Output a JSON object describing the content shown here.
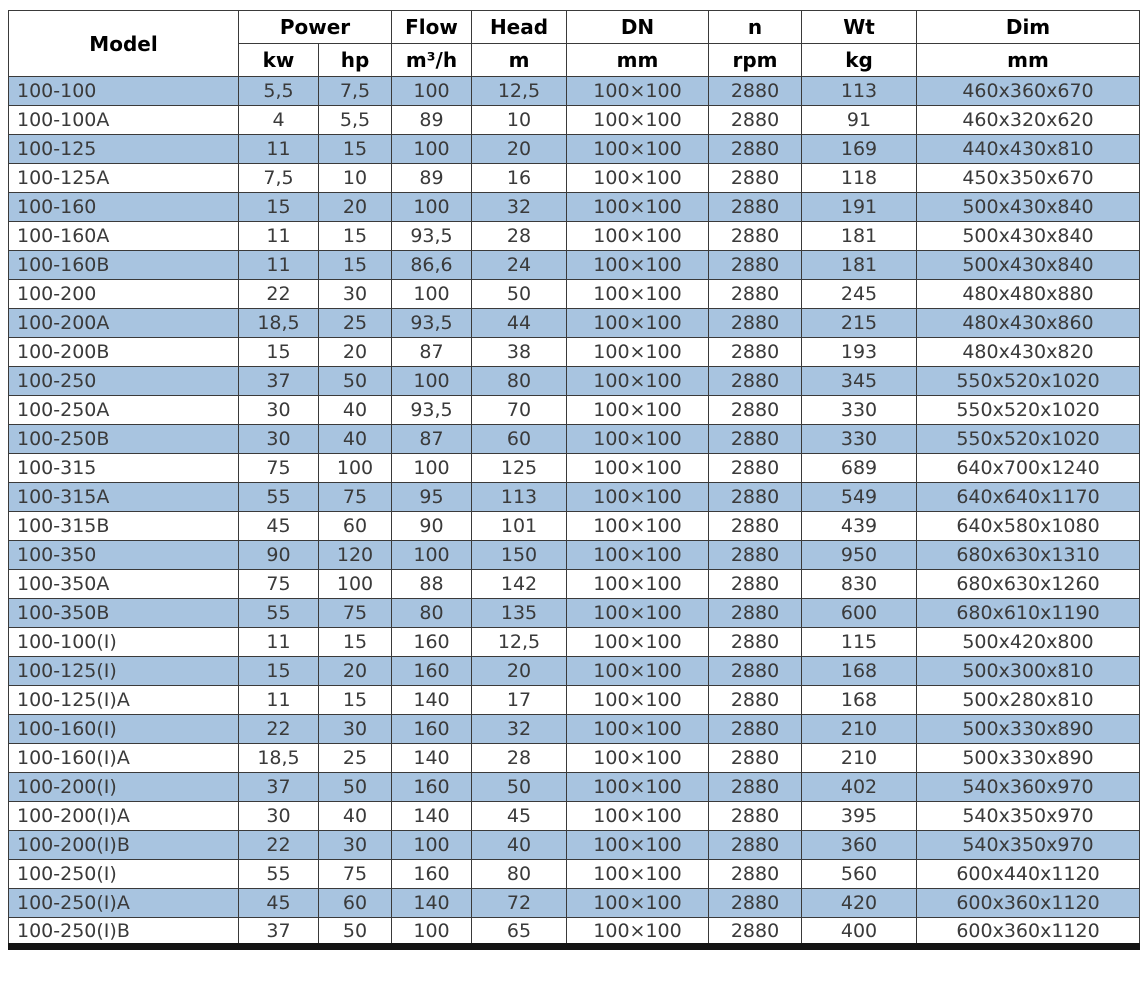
{
  "table": {
    "columns": [
      "model",
      "kw",
      "hp",
      "flow",
      "head",
      "dn",
      "n",
      "wt",
      "dim"
    ],
    "header": {
      "model": "Model",
      "power": "Power",
      "flow": "Flow",
      "head": "Head",
      "dn": "DN",
      "n": "n",
      "wt": "Wt",
      "dim": "Dim",
      "units": {
        "kw": "kw",
        "hp": "hp",
        "flow": "m³/h",
        "head": "m",
        "dn": "mm",
        "n": "rpm",
        "wt": "kg",
        "dim": "mm"
      }
    },
    "colors": {
      "stripe": "#a8c4e0",
      "border": "#3a3a3a",
      "header_text": "#000000",
      "body_text": "#3a3a3a"
    },
    "rows": [
      [
        "100-100",
        "5,5",
        "7,5",
        "100",
        "12,5",
        "100×100",
        "2880",
        "113",
        "460x360x670"
      ],
      [
        "100-100A",
        "4",
        "5,5",
        "89",
        "10",
        "100×100",
        "2880",
        "91",
        "460x320x620"
      ],
      [
        "100-125",
        "11",
        "15",
        "100",
        "20",
        "100×100",
        "2880",
        "169",
        "440x430x810"
      ],
      [
        "100-125A",
        "7,5",
        "10",
        "89",
        "16",
        "100×100",
        "2880",
        "118",
        "450x350x670"
      ],
      [
        "100-160",
        "15",
        "20",
        "100",
        "32",
        "100×100",
        "2880",
        "191",
        "500x430x840"
      ],
      [
        "100-160A",
        "11",
        "15",
        "93,5",
        "28",
        "100×100",
        "2880",
        "181",
        "500x430x840"
      ],
      [
        "100-160B",
        "11",
        "15",
        "86,6",
        "24",
        "100×100",
        "2880",
        "181",
        "500x430x840"
      ],
      [
        "100-200",
        "22",
        "30",
        "100",
        "50",
        "100×100",
        "2880",
        "245",
        "480x480x880"
      ],
      [
        "100-200A",
        "18,5",
        "25",
        "93,5",
        "44",
        "100×100",
        "2880",
        "215",
        "480x430x860"
      ],
      [
        "100-200B",
        "15",
        "20",
        "87",
        "38",
        "100×100",
        "2880",
        "193",
        "480x430x820"
      ],
      [
        "100-250",
        "37",
        "50",
        "100",
        "80",
        "100×100",
        "2880",
        "345",
        "550x520x1020"
      ],
      [
        "100-250A",
        "30",
        "40",
        "93,5",
        "70",
        "100×100",
        "2880",
        "330",
        "550x520x1020"
      ],
      [
        "100-250B",
        "30",
        "40",
        "87",
        "60",
        "100×100",
        "2880",
        "330",
        "550x520x1020"
      ],
      [
        "100-315",
        "75",
        "100",
        "100",
        "125",
        "100×100",
        "2880",
        "689",
        "640x700x1240"
      ],
      [
        "100-315A",
        "55",
        "75",
        "95",
        "113",
        "100×100",
        "2880",
        "549",
        "640x640x1170"
      ],
      [
        "100-315B",
        "45",
        "60",
        "90",
        "101",
        "100×100",
        "2880",
        "439",
        "640x580x1080"
      ],
      [
        "100-350",
        "90",
        "120",
        "100",
        "150",
        "100×100",
        "2880",
        "950",
        "680x630x1310"
      ],
      [
        "100-350A",
        "75",
        "100",
        "88",
        "142",
        "100×100",
        "2880",
        "830",
        "680x630x1260"
      ],
      [
        "100-350B",
        "55",
        "75",
        "80",
        "135",
        "100×100",
        "2880",
        "600",
        "680x610x1190"
      ],
      [
        "100-100(I)",
        "11",
        "15",
        "160",
        "12,5",
        "100×100",
        "2880",
        "115",
        "500x420x800"
      ],
      [
        "100-125(I)",
        "15",
        "20",
        "160",
        "20",
        "100×100",
        "2880",
        "168",
        "500x300x810"
      ],
      [
        "100-125(I)A",
        "11",
        "15",
        "140",
        "17",
        "100×100",
        "2880",
        "168",
        "500x280x810"
      ],
      [
        "100-160(I)",
        "22",
        "30",
        "160",
        "32",
        "100×100",
        "2880",
        "210",
        "500x330x890"
      ],
      [
        "100-160(I)A",
        "18,5",
        "25",
        "140",
        "28",
        "100×100",
        "2880",
        "210",
        "500x330x890"
      ],
      [
        "100-200(I)",
        "37",
        "50",
        "160",
        "50",
        "100×100",
        "2880",
        "402",
        "540x360x970"
      ],
      [
        "100-200(I)A",
        "30",
        "40",
        "140",
        "45",
        "100×100",
        "2880",
        "395",
        "540x350x970"
      ],
      [
        "100-200(I)B",
        "22",
        "30",
        "100",
        "40",
        "100×100",
        "2880",
        "360",
        "540x350x970"
      ],
      [
        "100-250(I)",
        "55",
        "75",
        "160",
        "80",
        "100×100",
        "2880",
        "560",
        "600x440x1120"
      ],
      [
        "100-250(I)A",
        "45",
        "60",
        "140",
        "72",
        "100×100",
        "2880",
        "420",
        "600x360x1120"
      ],
      [
        "100-250(I)B",
        "37",
        "50",
        "100",
        "65",
        "100×100",
        "2880",
        "400",
        "600x360x1120"
      ]
    ]
  }
}
